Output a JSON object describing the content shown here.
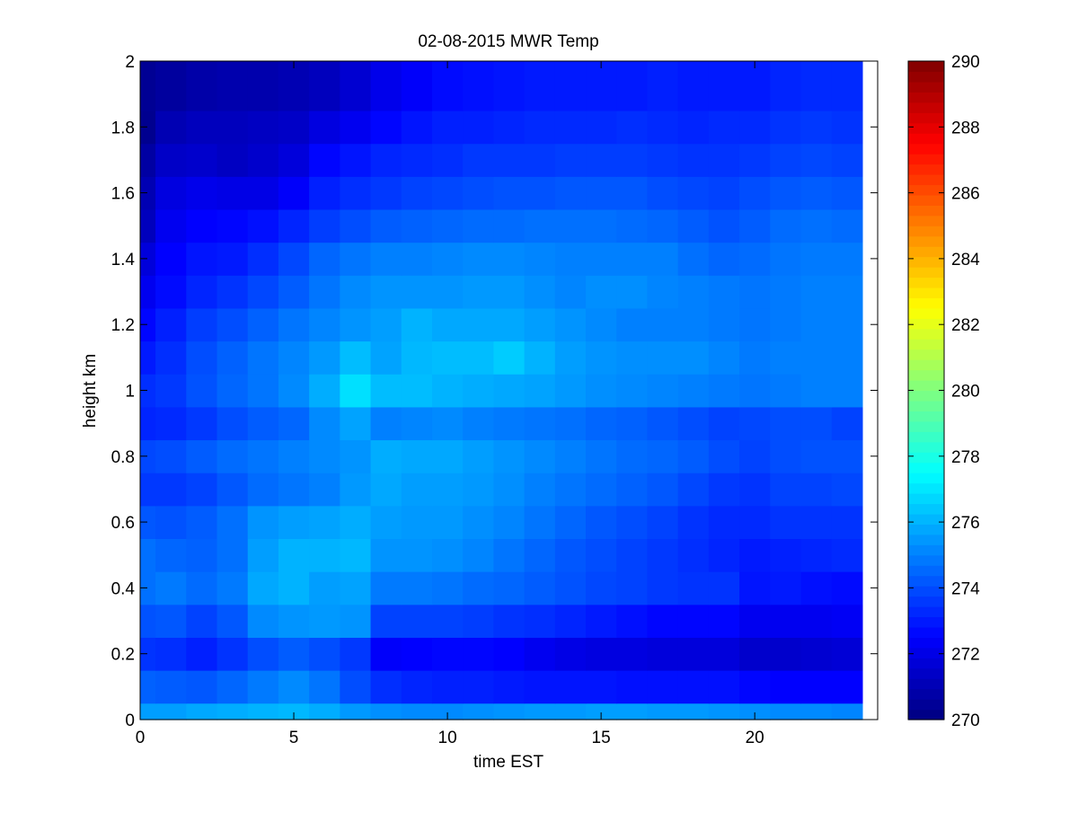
{
  "chart_data": {
    "type": "heatmap",
    "title": "02-08-2015 MWR Temp",
    "xlabel": "time EST",
    "ylabel": "height km",
    "xlim": [
      0,
      24
    ],
    "ylim": [
      0,
      2
    ],
    "xticks": [
      0,
      5,
      10,
      15,
      20
    ],
    "xtick_labels": [
      "0",
      "5",
      "10",
      "15",
      "20"
    ],
    "yticks": [
      0,
      0.2,
      0.4,
      0.6,
      0.8,
      1,
      1.2,
      1.4,
      1.6,
      1.8,
      2
    ],
    "ytick_labels": [
      "0",
      "0.2",
      "0.4",
      "0.6",
      "0.8",
      "1",
      "1.2",
      "1.4",
      "1.6",
      "1.8",
      "2"
    ],
    "colorbar": {
      "colormap": "jet",
      "range": [
        270,
        290
      ],
      "ticks": [
        270,
        272,
        274,
        276,
        278,
        280,
        282,
        284,
        286,
        288,
        290
      ],
      "tick_labels": [
        "270",
        "272",
        "274",
        "276",
        "278",
        "280",
        "282",
        "284",
        "286",
        "288",
        "290"
      ]
    },
    "grid": false,
    "x_edges": [
      0,
      0.5,
      1.5,
      2.5,
      3.5,
      4.5,
      5.5,
      6.5,
      7.5,
      8.5,
      9.5,
      10.5,
      11.5,
      12.5,
      13.5,
      14.5,
      15.5,
      16.5,
      17.5,
      18.5,
      19.5,
      20.5,
      21.5,
      22.5,
      23.5
    ],
    "y_edges": [
      0,
      0.05,
      0.15,
      0.25,
      0.35,
      0.45,
      0.55,
      0.65,
      0.75,
      0.85,
      0.95,
      1.05,
      1.15,
      1.25,
      1.35,
      1.45,
      1.55,
      1.65,
      1.75,
      1.85,
      2.0
    ],
    "z_rows_bottom_to_top": [
      [
        275.6,
        275.6,
        275.8,
        275.9,
        276.0,
        276.1,
        275.9,
        275.5,
        275.3,
        275.2,
        275.2,
        275.3,
        275.4,
        275.5,
        275.5,
        275.6,
        275.6,
        275.5,
        275.5,
        275.4,
        275.3,
        275.2,
        275.2,
        275.1
      ],
      [
        274.4,
        274.3,
        274.2,
        274.5,
        274.9,
        275.2,
        274.8,
        274.0,
        273.4,
        273.2,
        273.1,
        273.1,
        273.0,
        272.9,
        272.9,
        272.9,
        272.8,
        272.8,
        272.8,
        272.8,
        272.6,
        272.5,
        272.5,
        272.5
      ],
      [
        273.5,
        273.4,
        273.1,
        273.5,
        274.0,
        274.3,
        274.0,
        273.6,
        272.4,
        272.5,
        272.6,
        272.6,
        272.5,
        272.2,
        272.0,
        271.9,
        271.9,
        271.8,
        271.8,
        271.8,
        271.5,
        271.5,
        271.6,
        271.7
      ],
      [
        274.1,
        274.2,
        273.8,
        274.2,
        275.2,
        275.4,
        275.5,
        275.4,
        273.8,
        273.8,
        273.8,
        273.7,
        273.5,
        273.4,
        273.2,
        273.0,
        272.8,
        272.6,
        272.6,
        272.6,
        272.2,
        272.2,
        272.2,
        272.3
      ],
      [
        274.7,
        274.9,
        274.6,
        274.9,
        275.8,
        276.0,
        275.6,
        275.7,
        274.9,
        274.9,
        274.8,
        274.6,
        274.5,
        274.3,
        274.1,
        273.9,
        273.8,
        273.6,
        273.5,
        273.5,
        272.9,
        273.0,
        272.8,
        272.7
      ],
      [
        274.7,
        274.5,
        274.4,
        274.7,
        275.6,
        276.0,
        276.0,
        276.1,
        275.4,
        275.4,
        275.3,
        275.1,
        274.8,
        274.5,
        274.2,
        274.0,
        273.8,
        273.6,
        273.4,
        273.2,
        273.0,
        273.1,
        273.2,
        273.3
      ],
      [
        274.2,
        274.1,
        274.3,
        274.7,
        275.4,
        275.6,
        275.7,
        275.9,
        275.6,
        275.5,
        275.5,
        275.3,
        275.1,
        274.8,
        274.5,
        274.2,
        274.0,
        273.8,
        273.5,
        273.3,
        273.3,
        273.5,
        273.5,
        273.5
      ],
      [
        273.6,
        273.6,
        273.8,
        274.2,
        274.6,
        274.8,
        275.0,
        275.5,
        275.8,
        275.6,
        275.6,
        275.5,
        275.3,
        275.0,
        274.8,
        274.6,
        274.4,
        274.2,
        273.9,
        273.6,
        273.5,
        273.8,
        273.8,
        273.9
      ],
      [
        273.9,
        274.0,
        274.3,
        274.6,
        274.8,
        275.0,
        275.2,
        275.4,
        275.9,
        275.8,
        275.8,
        275.6,
        275.4,
        275.2,
        275.0,
        274.8,
        274.6,
        274.5,
        274.3,
        274.0,
        273.8,
        274.0,
        274.1,
        274.1
      ],
      [
        273.2,
        273.3,
        273.6,
        274.0,
        274.3,
        274.5,
        275.2,
        275.7,
        275.0,
        275.1,
        275.2,
        275.0,
        274.9,
        274.8,
        274.7,
        274.5,
        274.4,
        274.2,
        274.0,
        273.8,
        273.9,
        274.0,
        274.0,
        273.8
      ],
      [
        273.4,
        273.6,
        274.1,
        274.5,
        274.8,
        275.2,
        275.9,
        276.9,
        276.2,
        276.2,
        276.0,
        275.9,
        275.8,
        275.7,
        275.5,
        275.3,
        275.2,
        275.1,
        275.0,
        274.9,
        274.8,
        274.9,
        275.0,
        275.0
      ],
      [
        273.0,
        273.4,
        274.0,
        274.4,
        274.8,
        275.1,
        275.5,
        276.2,
        275.7,
        276.1,
        276.2,
        276.2,
        276.5,
        276.0,
        275.6,
        275.4,
        275.3,
        275.3,
        275.3,
        275.1,
        274.9,
        275.0,
        275.0,
        275.0
      ],
      [
        272.6,
        273.1,
        273.7,
        274.0,
        274.4,
        274.8,
        275.1,
        275.4,
        275.6,
        276.0,
        275.8,
        275.8,
        275.8,
        275.6,
        275.4,
        275.2,
        275.0,
        275.0,
        275.0,
        274.9,
        274.8,
        274.9,
        275.0,
        275.0
      ],
      [
        272.2,
        272.7,
        273.2,
        273.5,
        273.9,
        274.3,
        274.8,
        275.2,
        275.4,
        275.4,
        275.4,
        275.5,
        275.5,
        275.3,
        275.1,
        275.3,
        275.3,
        275.1,
        275.0,
        274.9,
        274.8,
        274.9,
        275.0,
        275.0
      ],
      [
        271.8,
        272.5,
        272.9,
        273.0,
        273.4,
        273.9,
        274.5,
        274.8,
        275.0,
        275.0,
        275.1,
        275.2,
        275.2,
        275.1,
        275.0,
        275.0,
        275.0,
        275.0,
        274.7,
        274.5,
        274.6,
        274.8,
        274.9,
        274.9
      ],
      [
        271.2,
        272.2,
        272.5,
        272.6,
        272.8,
        273.2,
        273.7,
        274.0,
        274.3,
        274.4,
        274.5,
        274.6,
        274.6,
        274.7,
        274.7,
        274.7,
        274.6,
        274.5,
        274.3,
        274.1,
        274.3,
        274.6,
        274.7,
        274.6
      ],
      [
        271.0,
        271.9,
        272.1,
        272.0,
        272.0,
        272.4,
        273.1,
        273.4,
        273.6,
        273.8,
        273.9,
        274.0,
        274.1,
        274.1,
        274.2,
        274.2,
        274.2,
        274.0,
        273.9,
        273.8,
        274.0,
        274.2,
        274.3,
        274.2
      ],
      [
        270.7,
        271.4,
        271.5,
        271.3,
        271.5,
        271.8,
        272.6,
        272.9,
        273.2,
        273.3,
        273.4,
        273.6,
        273.6,
        273.6,
        273.7,
        273.7,
        273.7,
        273.6,
        273.5,
        273.5,
        273.6,
        273.8,
        273.9,
        273.8
      ],
      [
        270.3,
        271.0,
        271.2,
        271.2,
        271.3,
        271.4,
        271.9,
        272.2,
        272.6,
        272.9,
        273.1,
        273.1,
        273.2,
        273.3,
        273.3,
        273.3,
        273.4,
        273.3,
        273.2,
        273.3,
        273.3,
        273.5,
        273.6,
        273.5
      ],
      [
        270.4,
        270.6,
        270.8,
        270.9,
        270.9,
        271.0,
        271.2,
        271.6,
        272.1,
        272.4,
        272.7,
        272.8,
        272.9,
        273.0,
        273.0,
        273.0,
        273.0,
        273.1,
        273.0,
        273.0,
        273.0,
        273.2,
        273.3,
        273.3
      ]
    ]
  }
}
